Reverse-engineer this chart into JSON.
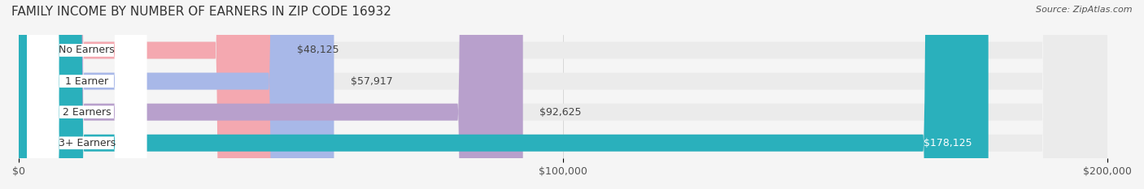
{
  "title": "FAMILY INCOME BY NUMBER OF EARNERS IN ZIP CODE 16932",
  "source": "Source: ZipAtlas.com",
  "categories": [
    "No Earners",
    "1 Earner",
    "2 Earners",
    "3+ Earners"
  ],
  "values": [
    48125,
    57917,
    92625,
    178125
  ],
  "bar_colors": [
    "#f4a8b0",
    "#a8b8e8",
    "#b8a0cc",
    "#2ab0bc"
  ],
  "bar_bg_color": "#ebebeb",
  "value_labels": [
    "$48,125",
    "$57,917",
    "$92,625",
    "$178,125"
  ],
  "xmax": 200000,
  "xticks": [
    0,
    100000,
    200000
  ],
  "xticklabels": [
    "$0",
    "$100,000",
    "$200,000"
  ],
  "background_color": "#f5f5f5",
  "title_fontsize": 11,
  "label_fontsize": 9,
  "value_fontsize": 9,
  "source_fontsize": 8
}
